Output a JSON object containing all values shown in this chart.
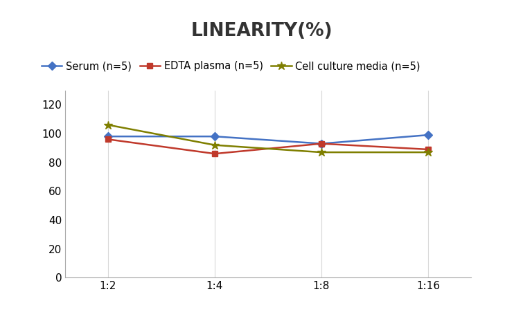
{
  "title": "LINEARITY(%)",
  "title_fontsize": 19,
  "title_fontweight": "bold",
  "x_labels": [
    "1:2",
    "1:4",
    "1:8",
    "1:16"
  ],
  "x_positions": [
    0,
    1,
    2,
    3
  ],
  "series": [
    {
      "label": "Serum (n=5)",
      "values": [
        98,
        98,
        93,
        99
      ],
      "color": "#4472C4",
      "marker": "D",
      "markersize": 6,
      "linewidth": 1.8
    },
    {
      "label": "EDTA plasma (n=5)",
      "values": [
        96,
        86,
        93,
        89
      ],
      "color": "#C0392B",
      "marker": "s",
      "markersize": 6,
      "linewidth": 1.8
    },
    {
      "label": "Cell culture media (n=5)",
      "values": [
        106,
        92,
        87,
        87
      ],
      "color": "#7F7F00",
      "marker": "*",
      "markersize": 9,
      "linewidth": 1.8
    }
  ],
  "ylim": [
    0,
    130
  ],
  "yticks": [
    0,
    20,
    40,
    60,
    80,
    100,
    120
  ],
  "grid_color": "#D8D8D8",
  "background_color": "#FFFFFF",
  "legend_fontsize": 10.5,
  "tick_fontsize": 11
}
